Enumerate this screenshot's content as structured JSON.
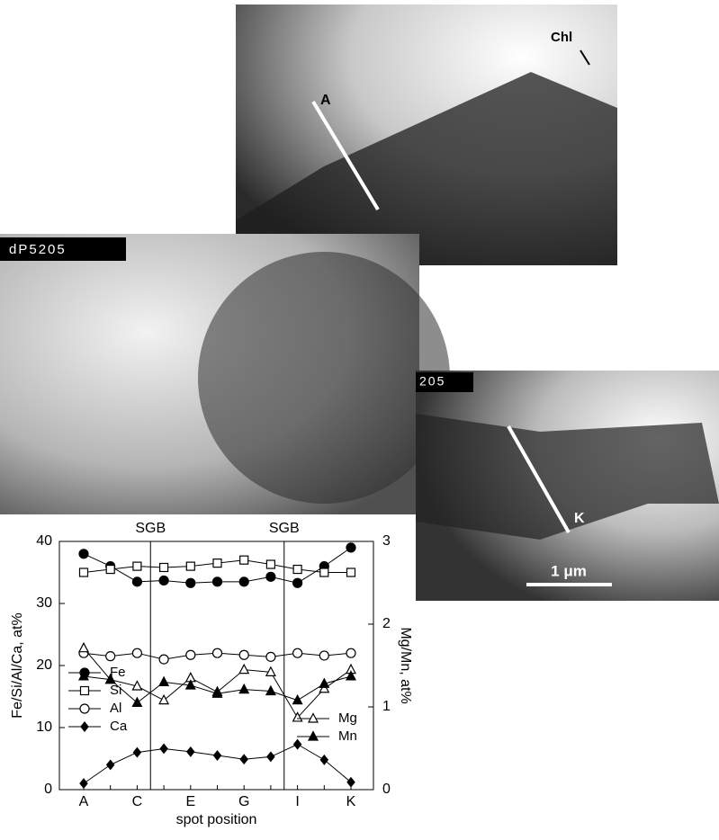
{
  "micrographs": {
    "labels": {
      "chl": "Chl",
      "a": "A",
      "k": "K",
      "scale": "1 μm",
      "tag_left": "dP5205",
      "tag_right": "205"
    }
  },
  "chart_data": {
    "type": "line",
    "y_label": "Fe/Si/Al/Ca, at%",
    "y2_label": "Mg/Mn, at%",
    "x_label": "spot position",
    "annotations": [
      "SGB",
      "SGB"
    ],
    "categories": [
      "A",
      null,
      "C",
      null,
      "E",
      null,
      "G",
      null,
      "I",
      null,
      "K"
    ],
    "ylim": [
      0,
      40
    ],
    "yticks": [
      0,
      10,
      20,
      30,
      40
    ],
    "y2lim": [
      0,
      3
    ],
    "y2ticks": [
      0,
      1,
      2,
      3
    ],
    "series": [
      {
        "name": "Fe",
        "color": "#000",
        "marker": "circle",
        "filled": true,
        "values": [
          38,
          36,
          33.5,
          33.7,
          33.3,
          33.5,
          33.5,
          34.3,
          33.3,
          36,
          39
        ]
      },
      {
        "name": "Si",
        "color": "#000",
        "marker": "square",
        "filled": false,
        "values": [
          35,
          35.5,
          36,
          35.8,
          36,
          36.5,
          37,
          36.3,
          35.5,
          35,
          35
        ]
      },
      {
        "name": "Al",
        "color": "#000",
        "marker": "circle",
        "filled": false,
        "values": [
          22,
          21.5,
          22,
          21,
          21.7,
          22,
          21.7,
          21.4,
          22,
          21.6,
          22
        ]
      },
      {
        "name": "Ca",
        "color": "#000",
        "marker": "diamond",
        "filled": true,
        "values": [
          1,
          4,
          6,
          6.6,
          6.1,
          5.5,
          4.9,
          5.3,
          7.3,
          4.8,
          1.2
        ]
      },
      {
        "name": "Mg",
        "color": "#000",
        "marker": "triangle",
        "filled": false,
        "axis": "y2",
        "values": [
          1.71,
          1.33,
          1.25,
          1.08,
          1.35,
          1.18,
          1.45,
          1.42,
          0.87,
          1.22,
          1.45
        ]
      },
      {
        "name": "Mn",
        "color": "#000",
        "marker": "triangle",
        "filled": true,
        "axis": "y2",
        "values": [
          1.37,
          1.33,
          1.05,
          1.3,
          1.26,
          1.16,
          1.21,
          1.19,
          1.08,
          1.28,
          1.37
        ]
      }
    ]
  }
}
